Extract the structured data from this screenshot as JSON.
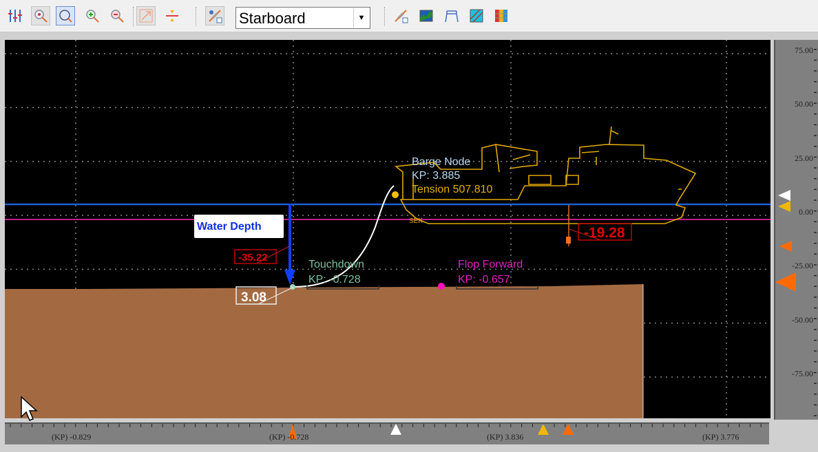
{
  "toolbar": {
    "icons": [
      "sliders-icon",
      "zoom-point-icon",
      "zoom-window-icon",
      "zoom-in-icon",
      "zoom-out-icon",
      "zoom-extents-icon",
      "split-icon",
      "pipe-view-icon",
      "pipe-check-icon",
      "seabed-profile-icon",
      "span-icon",
      "section-icon",
      "heatmap-icon"
    ],
    "view_select": {
      "selected": "Starboard"
    }
  },
  "plot": {
    "colors": {
      "background": "#000000",
      "seabed": "#a36a42",
      "water_line": "#1f5fd6",
      "reference_line": "#c0208a",
      "vessel": "#e0a800",
      "pipe": "#ffffff"
    },
    "water_depth_label": "Water Depth",
    "water_depth_value": "-35.22",
    "seabed_value": "3.08",
    "vessel_value": "-19.28",
    "barge_node": {
      "title": "Barge Node",
      "kp": "KP: 3.885"
    },
    "tension": {
      "label": "Tension",
      "value": "507.810",
      "overlay": "Tension 507.810"
    },
    "touchdown": {
      "title": "Touchdown",
      "kp": "KP: -0.728"
    },
    "flop_forward": {
      "title": "Flop Forward",
      "kp": "KP: -0.657"
    }
  },
  "y_axis": {
    "ticks": [
      "75.00",
      "50.00",
      "25.00",
      "0.00",
      "-25.00",
      "-50.00",
      "-75.00"
    ],
    "range": [
      -95,
      82
    ]
  },
  "x_axis": {
    "ticks": [
      "(KP) -0.829",
      "(KP) -0.728",
      "(KP) 3.836",
      "(KP) 3.776"
    ]
  }
}
